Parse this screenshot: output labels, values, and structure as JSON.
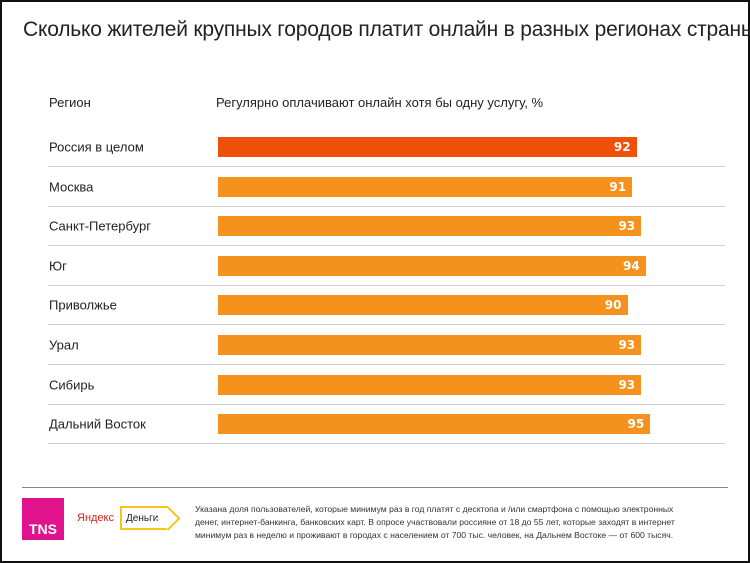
{
  "chart_data": {
    "type": "bar",
    "orientation": "horizontal",
    "title": "Сколько жителей крупных городов платит онлайн в разных регионах страны",
    "category_header": "Регион",
    "value_header": "Регулярно оплачивают онлайн хотя бы одну услугу, %",
    "categories": [
      "Россия в целом",
      "Москва",
      "Санкт-Петербург",
      "Юг",
      "Приволжье",
      "Урал",
      "Сибирь",
      "Дальний Восток"
    ],
    "values": [
      92,
      91,
      93,
      94,
      90,
      93,
      93,
      95
    ],
    "colors": {
      "total": "#ef500a",
      "region": "#f5921e"
    },
    "xlim": [
      0,
      100
    ],
    "grid": false
  },
  "footer": {
    "tns_logo": "TNS",
    "yandex_logo": "Яндекс",
    "dengi_logo": "Деньги",
    "note": "Указана доля пользователей, которые минимум раз в год платят с десктопа и /или смартфона с помощью электронных денег, интернет-банкинга, банковских карт. В опросе участвовали россияне от 18 до 55 лет, которые заходят в интернет минимум раз в неделю и проживают в городах с населением от 700 тыс. человек, на Дальнем Востоке — от 600 тысяч."
  }
}
